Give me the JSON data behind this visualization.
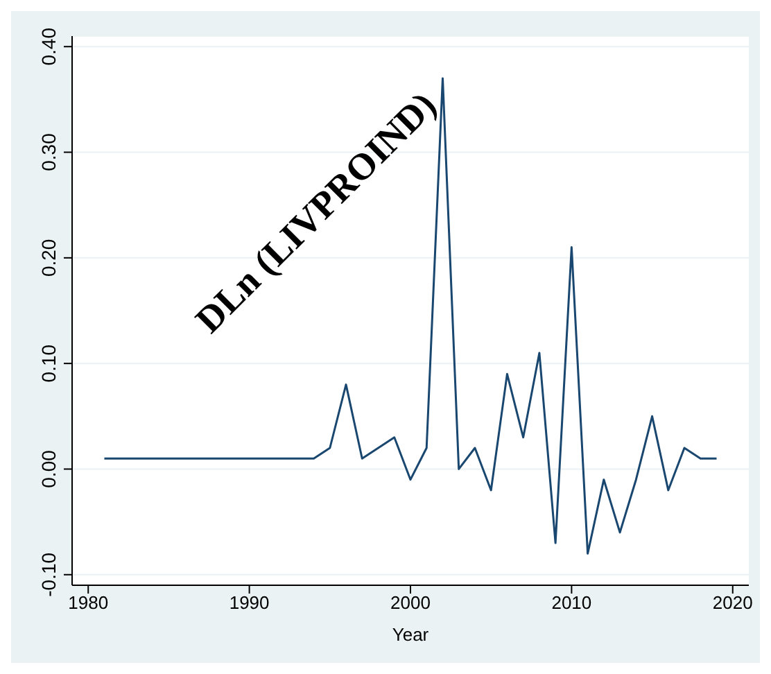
{
  "chart_data": {
    "type": "line",
    "xlabel": "Year",
    "annotations": [
      "DLn (LIVPROIND)"
    ],
    "x": [
      1981,
      1982,
      1983,
      1984,
      1985,
      1986,
      1987,
      1988,
      1989,
      1990,
      1991,
      1992,
      1993,
      1994,
      1995,
      1996,
      1997,
      1998,
      1999,
      2000,
      2001,
      2002,
      2003,
      2004,
      2005,
      2006,
      2007,
      2008,
      2009,
      2010,
      2011,
      2012,
      2013,
      2014,
      2015,
      2016,
      2017,
      2018,
      2019
    ],
    "series": [
      {
        "color": "#1a476f",
        "values": [
          0.01,
          0.01,
          0.01,
          0.01,
          0.01,
          0.01,
          0.01,
          0.01,
          0.01,
          0.01,
          0.01,
          0.01,
          0.01,
          0.01,
          0.02,
          0.08,
          0.01,
          0.02,
          0.03,
          -0.01,
          0.02,
          0.37,
          0.0,
          0.02,
          -0.02,
          0.09,
          0.03,
          0.11,
          -0.07,
          0.21,
          -0.08,
          -0.01,
          -0.06,
          -0.01,
          0.05,
          -0.02,
          0.02,
          0.01,
          0.01
        ]
      }
    ],
    "xlim": [
      1979,
      2021
    ],
    "xticks": [
      1980,
      1990,
      2000,
      2010,
      2020
    ],
    "ylim": [
      -0.11,
      0.41
    ],
    "yticks": [
      {
        "value": -0.1,
        "label": "-0.10"
      },
      {
        "value": 0,
        "label": "0.00"
      },
      {
        "value": 0.1,
        "label": "0.10"
      },
      {
        "value": 0.2,
        "label": "0.20"
      },
      {
        "value": 0.3,
        "label": "0.30"
      },
      {
        "value": 0.4,
        "label": "0.40"
      }
    ],
    "grid": "y",
    "marker": "none",
    "line_style": "solid",
    "legend": false
  }
}
